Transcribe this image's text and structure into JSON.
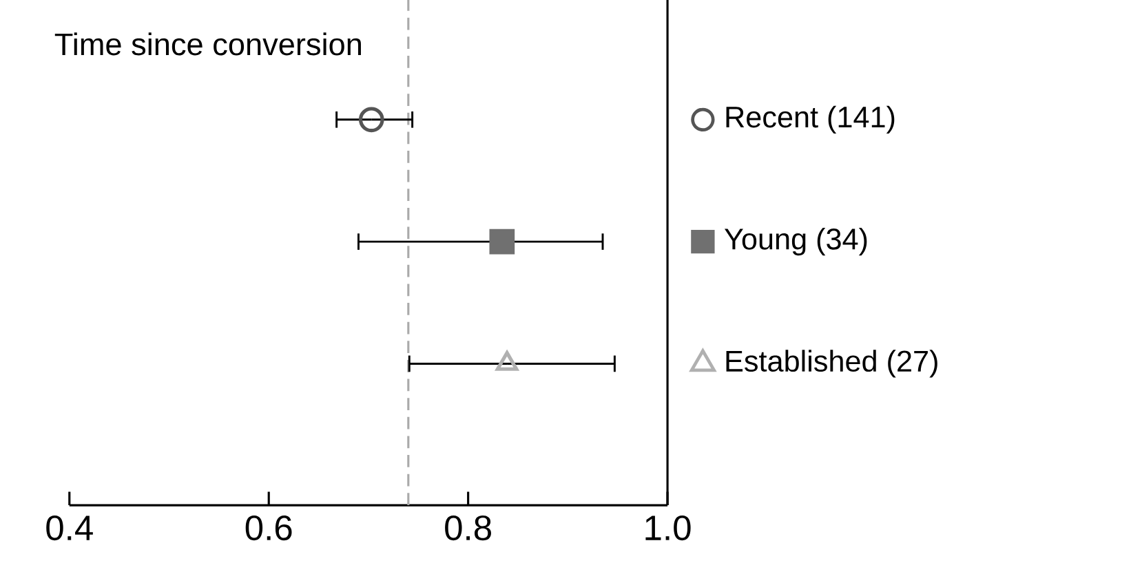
{
  "chart_data": {
    "type": "scatter",
    "title": "Time since conversion",
    "categories": [
      null,
      null,
      null
    ],
    "orientation": "horizontal",
    "xlim": [
      0.4,
      1.0
    ],
    "xticks": [
      0.4,
      0.6,
      0.8,
      {
        "value": 1.0,
        "label": "1.0"
      }
    ],
    "legend": "right",
    "grid": false,
    "ref_lines": [
      {
        "axis": "x",
        "value": 0.74,
        "color": "#aaaaaa",
        "line_style": "dashed"
      }
    ],
    "series": [
      {
        "name": "Recent (141)",
        "color": "#555555",
        "marker": "circle",
        "values": [
          0.703,
          null,
          null
        ],
        "errors": [
          [
            0.668,
            0.744
          ],
          null,
          null
        ]
      },
      {
        "name": "Young (34)",
        "color": "#707070",
        "marker": "square",
        "values": [
          null,
          0.834,
          null
        ],
        "errors": [
          null,
          [
            0.69,
            0.935
          ],
          null
        ]
      },
      {
        "name": "Established (27)",
        "color": "#b0b0b0",
        "marker": "triangle",
        "values": [
          null,
          null,
          0.839
        ],
        "errors": [
          null,
          null,
          [
            0.741,
            0.947
          ]
        ]
      }
    ]
  }
}
